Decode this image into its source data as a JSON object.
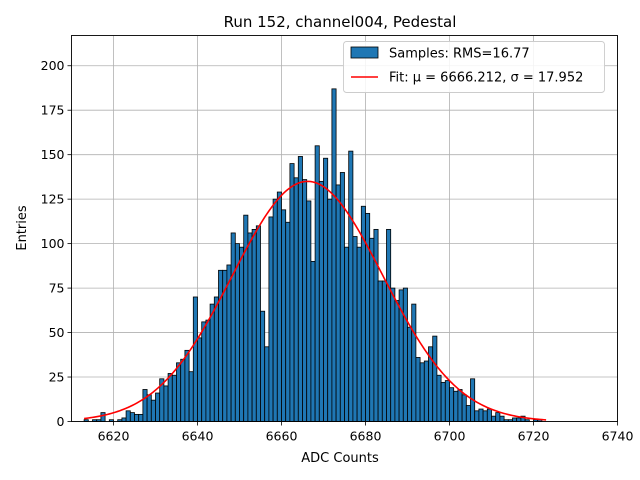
{
  "chart_data": {
    "type": "bar",
    "title": "Run 152, channel004, Pedestal",
    "xlabel": "ADC Counts",
    "ylabel": "Entries",
    "xlim": [
      6610,
      6740
    ],
    "ylim": [
      0,
      217
    ],
    "xticks": [
      6620,
      6640,
      6660,
      6680,
      6700,
      6720,
      6740
    ],
    "yticks": [
      0,
      25,
      50,
      75,
      100,
      125,
      150,
      175,
      200
    ],
    "grid": true,
    "legend_position": "top-right",
    "bin_width": 1,
    "histogram": {
      "name": "Samples: RMS=16.77",
      "color": "#1f77b4",
      "x": [
        6613,
        6614,
        6615,
        6616,
        6617,
        6618,
        6619,
        6620,
        6621,
        6622,
        6623,
        6624,
        6625,
        6626,
        6627,
        6628,
        6629,
        6630,
        6631,
        6632,
        6633,
        6634,
        6635,
        6636,
        6637,
        6638,
        6639,
        6640,
        6641,
        6642,
        6643,
        6644,
        6645,
        6646,
        6647,
        6648,
        6649,
        6650,
        6651,
        6652,
        6653,
        6654,
        6655,
        6656,
        6657,
        6658,
        6659,
        6660,
        6661,
        6662,
        6663,
        6664,
        6665,
        6666,
        6667,
        6668,
        6669,
        6670,
        6671,
        6672,
        6673,
        6674,
        6675,
        6676,
        6677,
        6678,
        6679,
        6680,
        6681,
        6682,
        6683,
        6684,
        6685,
        6686,
        6687,
        6688,
        6689,
        6690,
        6691,
        6692,
        6693,
        6694,
        6695,
        6696,
        6697,
        6698,
        6699,
        6700,
        6701,
        6702,
        6703,
        6704,
        6705,
        6706,
        6707,
        6708,
        6709,
        6710,
        6711,
        6712,
        6713,
        6714,
        6715,
        6716,
        6717,
        6718,
        6719,
        6720,
        6721,
        6722,
        6723
      ],
      "values": [
        1,
        0,
        1,
        1,
        5,
        0,
        1,
        0,
        1,
        2,
        6,
        5,
        4,
        4,
        18,
        15,
        12,
        16,
        24,
        20,
        27,
        26,
        33,
        35,
        40,
        28,
        70,
        47,
        56,
        57,
        66,
        70,
        85,
        85,
        88,
        106,
        100,
        98,
        116,
        106,
        108,
        110,
        62,
        42,
        115,
        125,
        129,
        119,
        112,
        145,
        137,
        149,
        136,
        124,
        90,
        155,
        135,
        148,
        125,
        187,
        133,
        140,
        98,
        152,
        104,
        98,
        121,
        117,
        103,
        108,
        79,
        79,
        108,
        75,
        68,
        74,
        75,
        53,
        66,
        36,
        33,
        34,
        42,
        48,
        26,
        22,
        23,
        19,
        17,
        18,
        15,
        9,
        24,
        6,
        7,
        6,
        7,
        3,
        5,
        3,
        1,
        1,
        2,
        2,
        3,
        1,
        0,
        1,
        1,
        0,
        0
      ],
      "stats": {
        "rms": 16.77
      }
    },
    "fit": {
      "name": "Fit: μ = 6666.212, σ = 17.952",
      "color": "#ff0000",
      "model": "gaussian",
      "mu": 6666.212,
      "sigma": 17.952,
      "amplitude": 135,
      "x_range": [
        6613,
        6723
      ]
    }
  }
}
